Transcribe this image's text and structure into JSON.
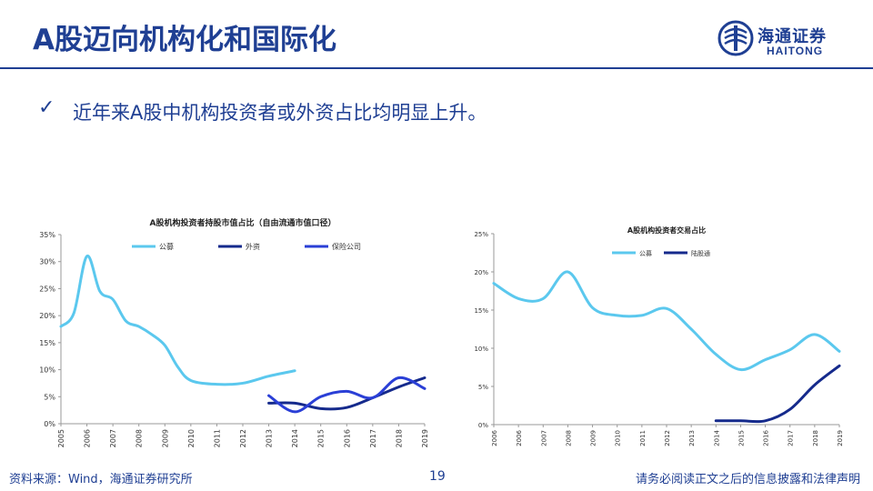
{
  "slide": {
    "title": "A股迈向机构化和国际化",
    "bullet": "近年来A股中机构投资者或外资占比均明显上升。",
    "source": "资料来源：Wind，海通证券研究所",
    "page_number": "19",
    "disclaimer": "请务必阅读正文之后的信息披露和法律声明",
    "logo_cn": "海通证券",
    "logo_en": "HAITONG",
    "colors": {
      "brand": "#1f3f93",
      "light_blue": "#5bc8ee",
      "navy": "#152a8c",
      "blue": "#2a3fd6"
    }
  },
  "chart_data": [
    {
      "type": "line",
      "title": "A股机构投资者持股市值占比（自由流通市值口径）",
      "categories": [
        "2005",
        "2006",
        "2007",
        "2008",
        "2009",
        "2010",
        "2011",
        "2012",
        "2013",
        "2014",
        "2015",
        "2016",
        "2017",
        "2018",
        "2019"
      ],
      "yticks": [
        "0%",
        "5%",
        "10%",
        "15%",
        "20%",
        "25%",
        "30%",
        "35%"
      ],
      "ylim": [
        0,
        35
      ],
      "legend_position": "top",
      "grid": false,
      "series": [
        {
          "name": "公募",
          "color": "#5bc8ee",
          "x": [
            0,
            0.5,
            1,
            1.5,
            2,
            2.5,
            3,
            3.5,
            4,
            4.5,
            5,
            6,
            7,
            8,
            9,
            10,
            11,
            12,
            13,
            14
          ],
          "values": [
            18,
            20.5,
            31,
            24.5,
            23,
            19,
            18,
            16.5,
            14.5,
            10.5,
            8,
            7.3,
            7.5,
            8.8,
            9.8,
            null,
            null,
            null,
            null,
            null
          ]
        },
        {
          "name": "外资",
          "color": "#152a8c",
          "x": [
            8,
            9,
            10,
            11,
            12,
            13,
            14
          ],
          "values": [
            3.8,
            3.8,
            2.8,
            3.0,
            4.8,
            6.8,
            8.5
          ]
        },
        {
          "name": "保险公司",
          "color": "#2a3fd6",
          "x": [
            8,
            9,
            10,
            11,
            12,
            13,
            14
          ],
          "values": [
            5.2,
            2.2,
            5.0,
            6.0,
            4.8,
            8.5,
            6.5
          ]
        }
      ]
    },
    {
      "type": "line",
      "title": "A股机构投资者交易占比",
      "categories": [
        "2006",
        "2006",
        "2007",
        "2008",
        "2009",
        "2010",
        "2011",
        "2012",
        "2013",
        "2014",
        "2015",
        "2016",
        "2017",
        "2018",
        "2019"
      ],
      "yticks": [
        "0%",
        "5%",
        "10%",
        "15%",
        "20%",
        "25%"
      ],
      "ylim": [
        0,
        25
      ],
      "legend_position": "top",
      "grid": false,
      "series": [
        {
          "name": "公募",
          "color": "#5bc8ee",
          "x": [
            0,
            1,
            2,
            3,
            4,
            5,
            6,
            7,
            8,
            9,
            10,
            11,
            12,
            13,
            14
          ],
          "values": [
            18.5,
            16.5,
            16.5,
            20,
            15.3,
            14.3,
            14.3,
            15.2,
            12.5,
            9.2,
            7.2,
            8.5,
            9.8,
            11.8,
            9.6
          ]
        },
        {
          "name": "陆股通",
          "color": "#152a8c",
          "x": [
            9,
            10,
            11,
            12,
            13,
            14
          ],
          "values": [
            0.5,
            0.5,
            0.5,
            2.0,
            5.2,
            7.7
          ]
        }
      ]
    }
  ]
}
